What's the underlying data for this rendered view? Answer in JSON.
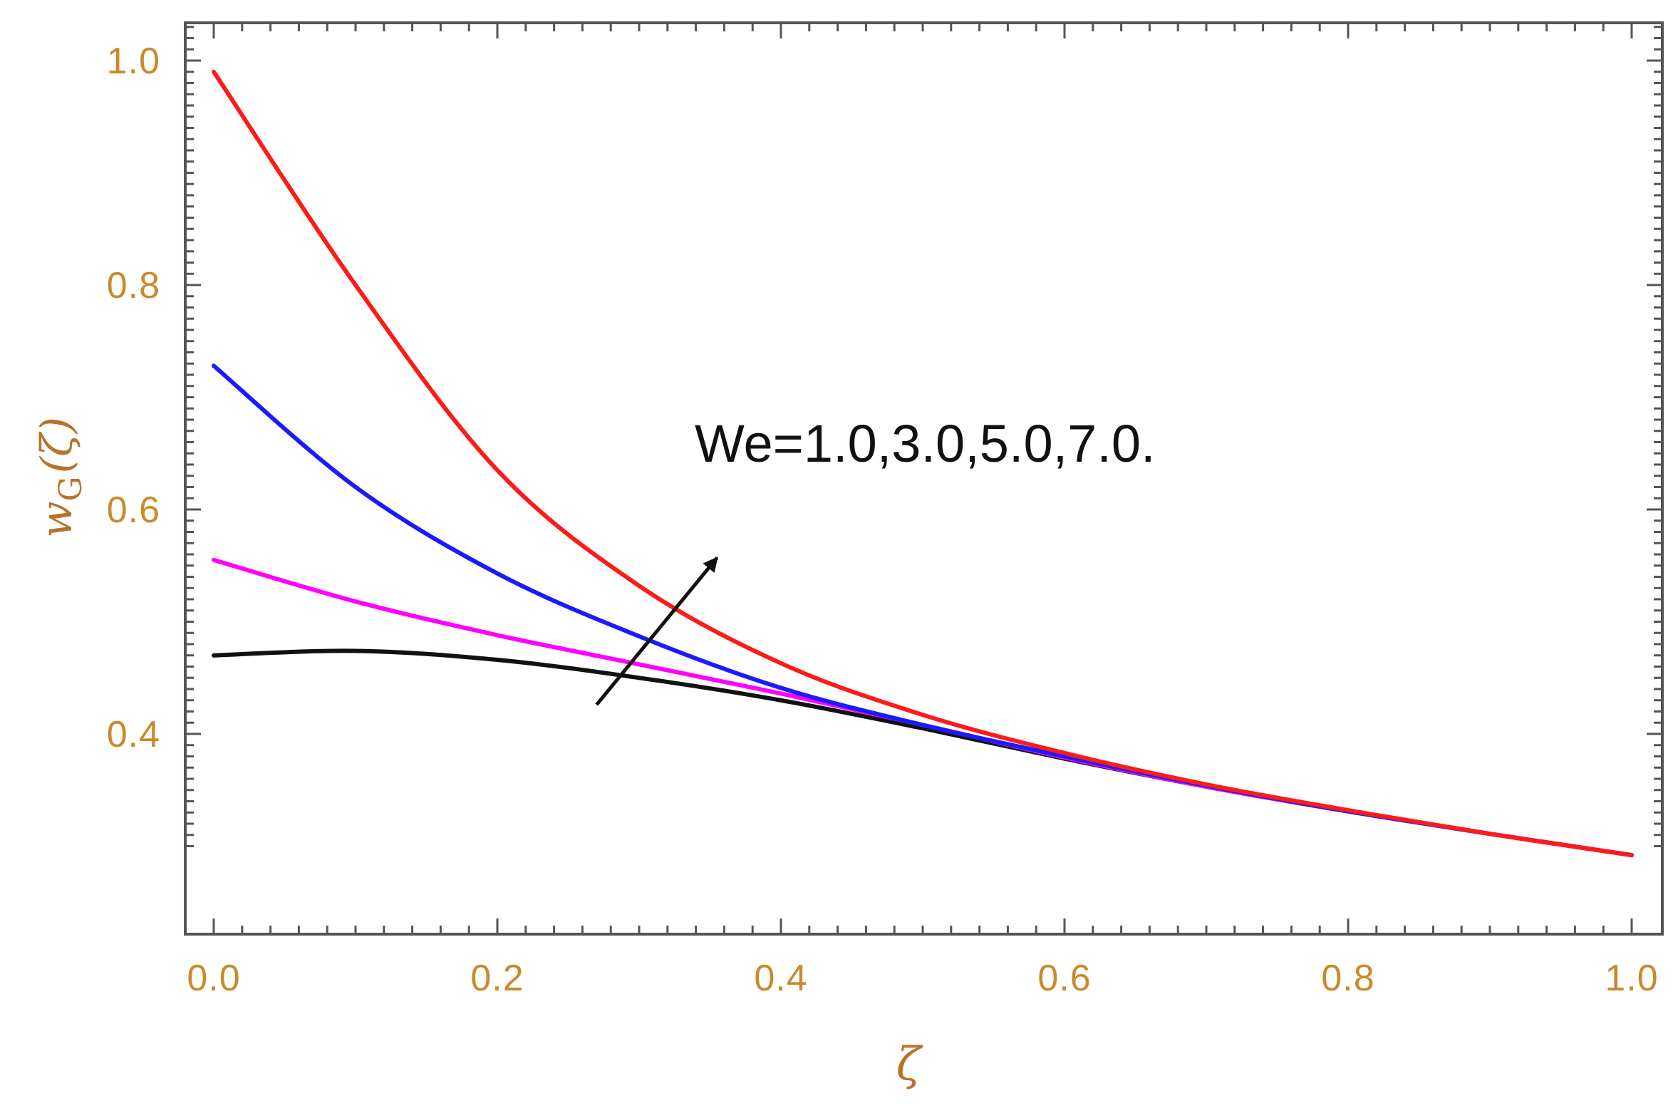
{
  "chart_data": {
    "type": "line",
    "title": "",
    "xlabel": "ζ",
    "ylabel": "w_G(ζ)",
    "ylabel_parts": {
      "main": "w",
      "sub": "G",
      "arg": "(ζ)"
    },
    "xlim": [
      0.0,
      1.0
    ],
    "ylim": [
      0.28,
      1.03
    ],
    "x_ticks": [
      "0.0",
      "0.2",
      "0.4",
      "0.6",
      "0.8",
      "1.0"
    ],
    "y_ticks": [
      "0.4",
      "0.6",
      "0.8",
      "1.0"
    ],
    "x": [
      0.0,
      0.1,
      0.2,
      0.3,
      0.4,
      0.5,
      0.6,
      0.7,
      0.8,
      0.9,
      1.0
    ],
    "series": [
      {
        "color": "#111111",
        "values": [
          0.47,
          0.474,
          0.466,
          0.45,
          0.43,
          0.405,
          0.378,
          0.353,
          0.331,
          0.311,
          0.292
        ]
      },
      {
        "color": "#ff00ff",
        "values": [
          0.555,
          0.518,
          0.488,
          0.462,
          0.436,
          0.408,
          0.379,
          0.353,
          0.331,
          0.311,
          0.292
        ]
      },
      {
        "color": "#1a1aff",
        "values": [
          0.728,
          0.62,
          0.543,
          0.487,
          0.441,
          0.408,
          0.38,
          0.354,
          0.331,
          0.311,
          0.292
        ]
      },
      {
        "color": "#ff1a1a",
        "values": [
          0.99,
          0.8,
          0.635,
          0.532,
          0.463,
          0.417,
          0.383,
          0.355,
          0.332,
          0.311,
          0.292
        ]
      }
    ],
    "annotation": {
      "text": "We=1.0,3.0,5.0,7.0.",
      "arrow": {
        "from": [
          0.27,
          0.426
        ],
        "to": [
          0.355,
          0.557
        ]
      }
    },
    "grid": false,
    "legend": "none",
    "frame_color": "#555555"
  }
}
